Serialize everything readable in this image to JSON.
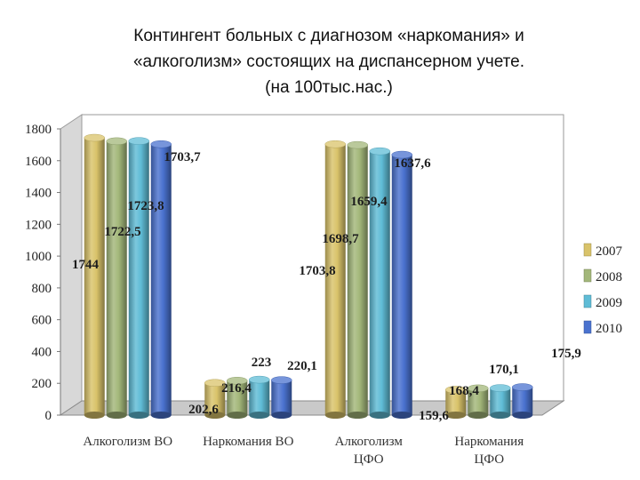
{
  "title_lines": [
    "Контингент больных с диагнозом «наркомания» и",
    "«алкоголизм» состоящих на диспансерном учете.",
    "(на 100тыс.нас.)"
  ],
  "chart_data": {
    "type": "bar",
    "title": "Контингент больных с диагнозом «наркомания» и «алкоголизм» состоящих на диспансерном учете. (на 100тыс.нас.)",
    "categories": [
      [
        "Алкоголизм ВО"
      ],
      [
        "Наркомания ВО"
      ],
      [
        "Алкоголизм",
        "ЦФО"
      ],
      [
        "Наркомания",
        "ЦФО"
      ]
    ],
    "series": [
      {
        "name": "2007",
        "color": "#d9c36a",
        "values": [
          1744,
          202.6,
          1703.8,
          159.6
        ],
        "labels": [
          "1744",
          "202,6",
          "1703,8",
          "159,6"
        ]
      },
      {
        "name": "2008",
        "color": "#a3b77a",
        "values": [
          1722.5,
          216.4,
          1698.7,
          168.4
        ],
        "labels": [
          "1722,5",
          "216,4",
          "1698,7",
          "168,4"
        ]
      },
      {
        "name": "2009",
        "color": "#5fbcd6",
        "values": [
          1723.8,
          223,
          1659.4,
          170.1
        ],
        "labels": [
          "1723,8",
          "223",
          "1659,4",
          "170,1"
        ]
      },
      {
        "name": "2010",
        "color": "#4a72cf",
        "values": [
          1703.7,
          220.1,
          1637.6,
          175.9
        ],
        "labels": [
          "1703,7",
          "220,1",
          "1637,6",
          "175,9"
        ]
      }
    ],
    "yticks": [
      "0",
      "200",
      "400",
      "600",
      "800",
      "1000",
      "1200",
      "1400",
      "1600",
      "1800"
    ],
    "ylim": [
      0,
      1800
    ],
    "legend_position": "right",
    "grid": false,
    "style": "3d cylinders"
  }
}
